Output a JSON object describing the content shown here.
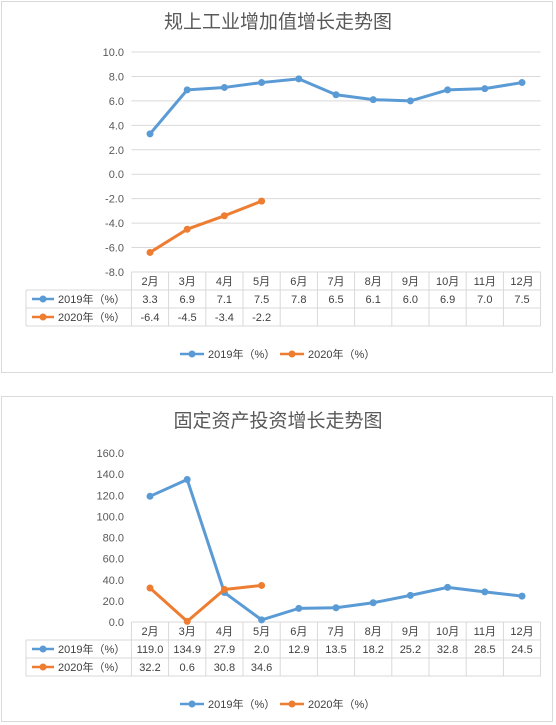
{
  "chart_data": [
    {
      "type": "line",
      "title": "规上工业增加值增长走势图",
      "categories": [
        "2月",
        "3月",
        "4月",
        "5月",
        "6月",
        "7月",
        "8月",
        "9月",
        "10月",
        "11月",
        "12月"
      ],
      "ylim": [
        -8,
        10
      ],
      "y_ticks": [
        "10.0",
        "8.0",
        "6.0",
        "4.0",
        "2.0",
        "0.0",
        "-2.0",
        "-4.0",
        "-6.0",
        "-8.0"
      ],
      "grid": true,
      "legend_position": "bottom",
      "table_below": true,
      "series": [
        {
          "name": "2019年（%）",
          "color": "#5b9bd5",
          "values": [
            3.3,
            6.9,
            7.1,
            7.5,
            7.8,
            6.5,
            6.1,
            6.0,
            6.9,
            7.0,
            7.5
          ],
          "labels": [
            "3.3",
            "6.9",
            "7.1",
            "7.5",
            "7.8",
            "6.5",
            "6.1",
            "6.0",
            "6.9",
            "7.0",
            "7.5"
          ]
        },
        {
          "name": "2020年（%）",
          "color": "#ed7d31",
          "values": [
            -6.4,
            -4.5,
            -3.4,
            -2.2,
            null,
            null,
            null,
            null,
            null,
            null,
            null
          ],
          "labels": [
            "-6.4",
            "-4.5",
            "-3.4",
            "-2.2",
            "",
            "",
            "",
            "",
            "",
            "",
            ""
          ]
        }
      ]
    },
    {
      "type": "line",
      "title": "固定资产投资增长走势图",
      "categories": [
        "2月",
        "3月",
        "4月",
        "5月",
        "6月",
        "7月",
        "8月",
        "9月",
        "10月",
        "11月",
        "12月"
      ],
      "ylim": [
        0,
        160
      ],
      "y_ticks": [
        "160.0",
        "140.0",
        "120.0",
        "100.0",
        "80.0",
        "60.0",
        "40.0",
        "20.0",
        "0.0"
      ],
      "grid": false,
      "legend_position": "bottom",
      "table_below": true,
      "series": [
        {
          "name": "2019年（%）",
          "color": "#5b9bd5",
          "values": [
            119.0,
            134.9,
            27.9,
            2.0,
            12.9,
            13.5,
            18.2,
            25.2,
            32.8,
            28.5,
            24.5
          ],
          "labels": [
            "119.0",
            "134.9",
            "27.9",
            "2.0",
            "12.9",
            "13.5",
            "18.2",
            "25.2",
            "32.8",
            "28.5",
            "24.5"
          ]
        },
        {
          "name": "2020年（%）",
          "color": "#ed7d31",
          "values": [
            32.2,
            0.6,
            30.8,
            34.6,
            null,
            null,
            null,
            null,
            null,
            null,
            null
          ],
          "labels": [
            "32.2",
            "0.6",
            "30.8",
            "34.6",
            "",
            "",
            "",
            "",
            "",
            "",
            ""
          ]
        }
      ]
    }
  ]
}
